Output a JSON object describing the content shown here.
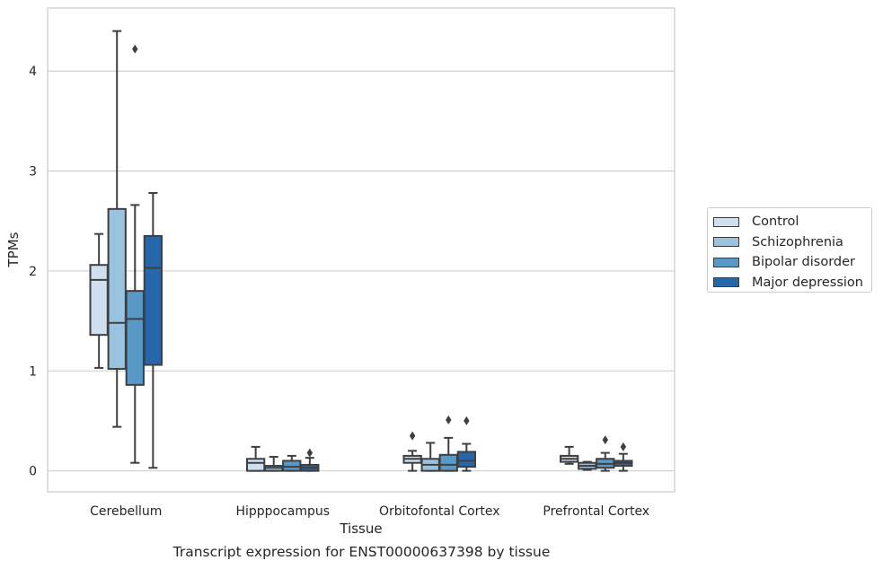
{
  "chart_data": {
    "type": "box",
    "xlabel": "Tissue",
    "ylabel": "TPMs",
    "caption": "Transcript expression for ENST00000637398 by tissue",
    "ylim": [
      -0.21,
      4.63
    ],
    "yticks": [
      0,
      1,
      2,
      3,
      4
    ],
    "grid": "horizontal",
    "legend_position": "right",
    "categories": [
      "Cerebellum",
      "Hipppocampus",
      "Orbitofontal Cortex",
      "Prefrontal Cortex"
    ],
    "series": [
      {
        "name": "Control",
        "color": "#cfdff0",
        "boxes": [
          {
            "whislo": 1.03,
            "q1": 1.36,
            "med": 1.91,
            "q3": 2.06,
            "whishi": 2.37,
            "fliers": []
          },
          {
            "whislo": 0.0,
            "q1": 0.0,
            "med": 0.08,
            "q3": 0.12,
            "whishi": 0.24,
            "fliers": []
          },
          {
            "whislo": 0.0,
            "q1": 0.08,
            "med": 0.12,
            "q3": 0.15,
            "whishi": 0.2,
            "fliers": [
              0.35
            ]
          },
          {
            "whislo": 0.07,
            "q1": 0.09,
            "med": 0.12,
            "q3": 0.15,
            "whishi": 0.24,
            "fliers": []
          }
        ]
      },
      {
        "name": "Schizophrenia",
        "color": "#9ac3df",
        "boxes": [
          {
            "whislo": 0.44,
            "q1": 1.02,
            "med": 1.48,
            "q3": 2.62,
            "whishi": 4.4,
            "fliers": []
          },
          {
            "whislo": 0.0,
            "q1": 0.0,
            "med": 0.03,
            "q3": 0.05,
            "whishi": 0.14,
            "fliers": []
          },
          {
            "whislo": 0.0,
            "q1": 0.0,
            "med": 0.06,
            "q3": 0.12,
            "whishi": 0.28,
            "fliers": []
          },
          {
            "whislo": 0.01,
            "q1": 0.02,
            "med": 0.05,
            "q3": 0.08,
            "whishi": 0.09,
            "fliers": []
          }
        ]
      },
      {
        "name": "Bipolar disorder",
        "color": "#5899c7",
        "boxes": [
          {
            "whislo": 0.08,
            "q1": 0.86,
            "med": 1.52,
            "q3": 1.8,
            "whishi": 2.66,
            "fliers": [
              4.22
            ]
          },
          {
            "whislo": 0.0,
            "q1": 0.0,
            "med": 0.04,
            "q3": 0.1,
            "whishi": 0.15,
            "fliers": []
          },
          {
            "whislo": 0.0,
            "q1": 0.0,
            "med": 0.06,
            "q3": 0.16,
            "whishi": 0.33,
            "fliers": [
              0.51
            ]
          },
          {
            "whislo": 0.0,
            "q1": 0.03,
            "med": 0.07,
            "q3": 0.12,
            "whishi": 0.18,
            "fliers": [
              0.31
            ]
          }
        ]
      },
      {
        "name": "Major depression",
        "color": "#2767a9",
        "boxes": [
          {
            "whislo": 0.03,
            "q1": 1.06,
            "med": 2.03,
            "q3": 2.35,
            "whishi": 2.78,
            "fliers": []
          },
          {
            "whislo": 0.0,
            "q1": 0.0,
            "med": 0.03,
            "q3": 0.06,
            "whishi": 0.13,
            "fliers": [
              0.18
            ]
          },
          {
            "whislo": 0.0,
            "q1": 0.04,
            "med": 0.1,
            "q3": 0.19,
            "whishi": 0.27,
            "fliers": [
              0.5
            ]
          },
          {
            "whislo": 0.0,
            "q1": 0.05,
            "med": 0.08,
            "q3": 0.1,
            "whishi": 0.17,
            "fliers": [
              0.24
            ]
          }
        ]
      }
    ]
  }
}
